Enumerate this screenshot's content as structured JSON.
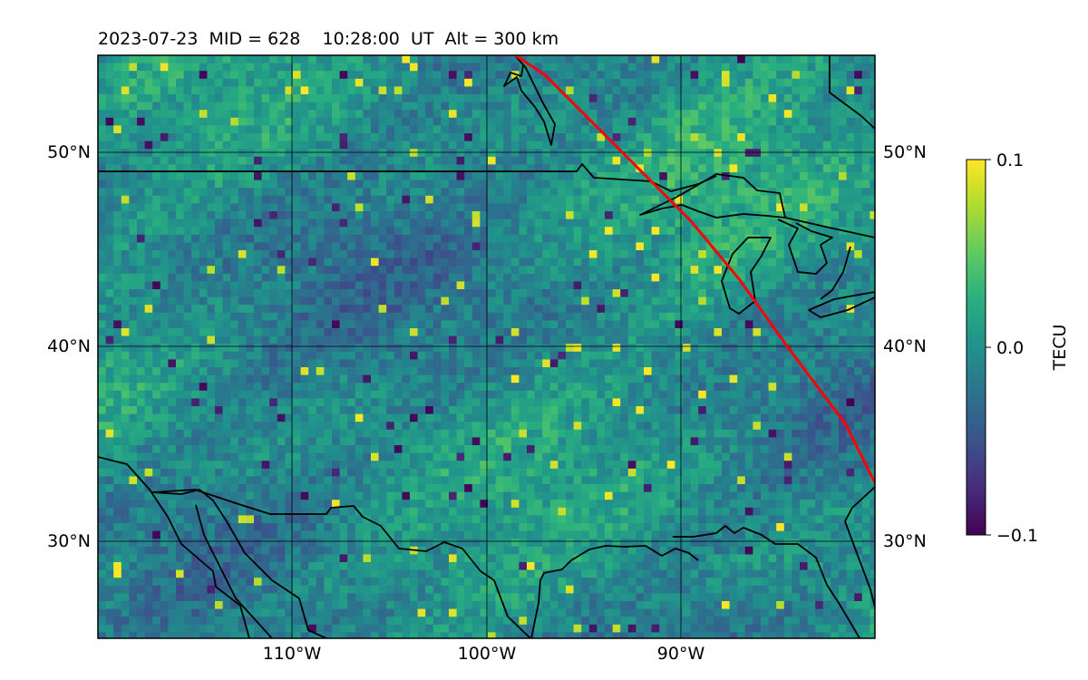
{
  "title": "2023-07-23  MID = 628    10:28:00  UT  Alt = 300 km",
  "map": {
    "lon_range": [
      -120,
      -80
    ],
    "lat_range": [
      25,
      55
    ],
    "lon_ticks": [
      {
        "value": -110,
        "label": "110°W"
      },
      {
        "value": -100,
        "label": "100°W"
      },
      {
        "value": -90,
        "label": "90°W"
      }
    ],
    "lat_ticks": [
      {
        "value": 50,
        "label": "50°N"
      },
      {
        "value": 40,
        "label": "40°N"
      },
      {
        "value": 30,
        "label": "30°N"
      }
    ],
    "grid": true,
    "track_color": "#ff0000",
    "track": [
      [
        -98.5,
        55
      ],
      [
        -97,
        54
      ],
      [
        -94,
        51
      ],
      [
        -91.5,
        48.5
      ],
      [
        -89.5,
        46.5
      ],
      [
        -87,
        43.5
      ],
      [
        -84.5,
        40
      ],
      [
        -81.5,
        36
      ],
      [
        -80,
        33
      ]
    ]
  },
  "colorbar": {
    "label": "TECU",
    "colormap": "viridis",
    "range": [
      -0.1,
      0.1
    ],
    "ticks": [
      {
        "value": 0.1,
        "label": "0.1"
      },
      {
        "value": 0.0,
        "label": "0.0"
      },
      {
        "value": -0.1,
        "label": "−0.1"
      }
    ]
  }
}
